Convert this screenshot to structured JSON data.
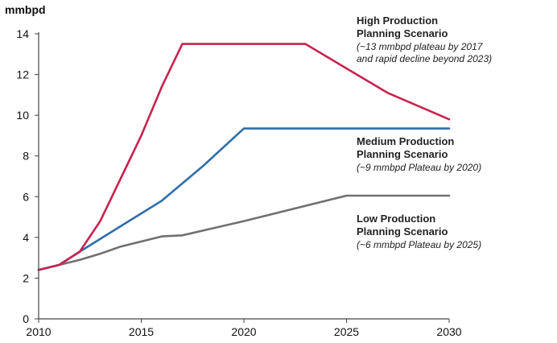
{
  "chart_data": {
    "type": "line",
    "ylabel": "mmbpd",
    "xlim": [
      2010,
      2030
    ],
    "ylim": [
      0,
      14
    ],
    "xticks": [
      2010,
      2015,
      2020,
      2025,
      2030
    ],
    "yticks": [
      0,
      2,
      4,
      6,
      8,
      10,
      12,
      14
    ],
    "grid": false,
    "series": [
      {
        "key": "high",
        "color": "#c8234e",
        "points": [
          [
            2010,
            2.4
          ],
          [
            2011,
            2.65
          ],
          [
            2012,
            3.3
          ],
          [
            2013,
            4.8
          ],
          [
            2014,
            6.9
          ],
          [
            2015,
            9.0
          ],
          [
            2016,
            11.4
          ],
          [
            2017,
            13.5
          ],
          [
            2023,
            13.5
          ],
          [
            2025,
            12.3
          ],
          [
            2027,
            11.1
          ],
          [
            2030,
            9.8
          ]
        ]
      },
      {
        "key": "medium",
        "color": "#2f6ea8",
        "points": [
          [
            2010,
            2.4
          ],
          [
            2011,
            2.65
          ],
          [
            2012,
            3.3
          ],
          [
            2014,
            4.55
          ],
          [
            2016,
            5.8
          ],
          [
            2018,
            7.5
          ],
          [
            2020,
            9.35
          ],
          [
            2030,
            9.35
          ]
        ]
      },
      {
        "key": "low",
        "color": "#707070",
        "points": [
          [
            2010,
            2.4
          ],
          [
            2011,
            2.65
          ],
          [
            2012,
            2.9
          ],
          [
            2013,
            3.2
          ],
          [
            2014,
            3.55
          ],
          [
            2016,
            4.05
          ],
          [
            2017,
            4.1
          ],
          [
            2020,
            4.8
          ],
          [
            2025,
            6.05
          ],
          [
            2030,
            6.05
          ]
        ]
      }
    ],
    "annotations": [
      {
        "key": "high",
        "title_lines": [
          "High Production",
          "Planning Scenario"
        ],
        "sub_lines": [
          "(~13 mmbpd plateau by 2017",
          "and rapid decline beyond 2023)"
        ]
      },
      {
        "key": "medium",
        "title_lines": [
          "Medium Production",
          "Planning Scenario"
        ],
        "sub_lines": [
          "(~9 mmbpd Plateau by 2020)"
        ]
      },
      {
        "key": "low",
        "title_lines": [
          "Low Production",
          "Planning Scenario"
        ],
        "sub_lines": [
          "(~6 mmbpd Plateau by 2025)"
        ]
      }
    ]
  }
}
